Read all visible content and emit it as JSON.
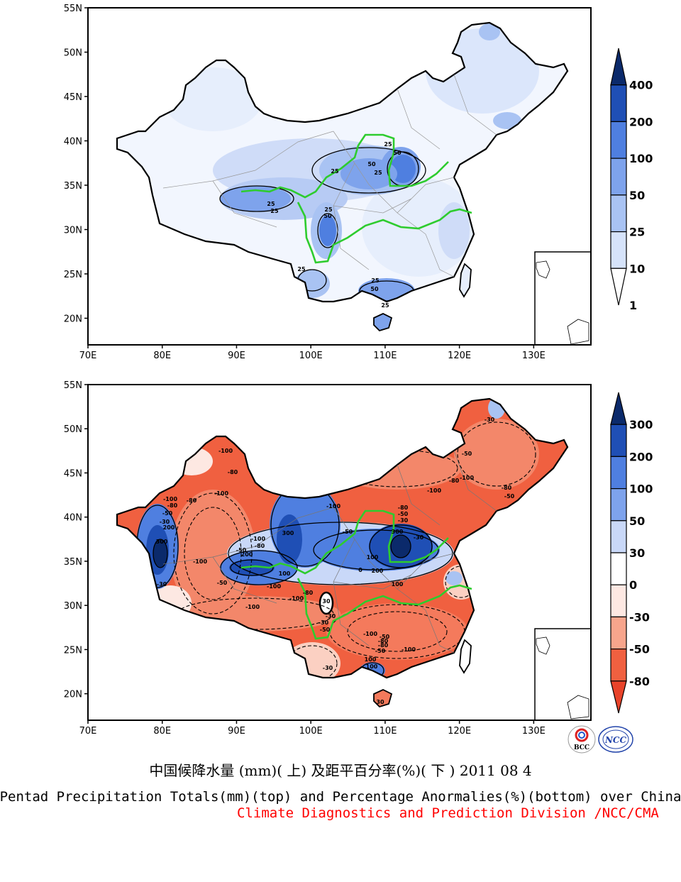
{
  "colors": {
    "river": "#2ecc2e",
    "neg_strong": "#f06040",
    "neg_mid": "#f59a82",
    "neg_light": "#fde8e2",
    "pos_light": "#e6eefc",
    "pos_mid": "#a9c3f3",
    "pos_strong": "#4f7fe0",
    "pos_dark": "#153a8a"
  },
  "top_panel": {
    "lat_labels": [
      "55N",
      "50N",
      "45N",
      "40N",
      "35N",
      "30N",
      "25N",
      "20N"
    ],
    "lon_labels": [
      "70E",
      "80E",
      "90E",
      "100E",
      "110E",
      "120E",
      "130E"
    ],
    "colorbar_labels": [
      "400",
      "200",
      "100",
      "50",
      "25",
      "10",
      "1"
    ],
    "colorbar_colors": [
      "#0b2a6b",
      "#1f4fb5",
      "#4f7fe0",
      "#7ea3ec",
      "#a9c3f3",
      "#d6e3fa",
      "#ffffff"
    ],
    "contour_labels": [
      "25",
      "50",
      "25",
      "50",
      "25",
      "25",
      "25",
      "25",
      "50",
      "25",
      "25",
      "50",
      "25"
    ]
  },
  "bottom_panel": {
    "lat_labels": [
      "55N",
      "50N",
      "45N",
      "40N",
      "35N",
      "30N",
      "25N",
      "20N"
    ],
    "lon_labels": [
      "70E",
      "80E",
      "90E",
      "100E",
      "110E",
      "120E",
      "130E"
    ],
    "colorbar_labels": [
      "300",
      "200",
      "100",
      "50",
      "30",
      "0",
      "-30",
      "-50",
      "-80"
    ],
    "colorbar_colors": [
      "#0b2a6b",
      "#1f4fb5",
      "#4f7fe0",
      "#7ea3ec",
      "#c9d8f8",
      "#ffffff",
      "#fde8e2",
      "#f7a58c",
      "#f06040",
      "#e8432a"
    ],
    "contour_labels": [
      "-100",
      "-80",
      "-100",
      "-80",
      "-100",
      "-80",
      "-50",
      "-30",
      "300",
      "200",
      "-100",
      "-30",
      "-80",
      "300",
      "200",
      "-100",
      "-50",
      "-100",
      "100",
      "-100",
      "-80",
      "-50",
      "-30",
      "0",
      "100",
      "200",
      "300",
      "-50",
      "-30",
      "100",
      "-100",
      "-80",
      "-50",
      "-100",
      "-30",
      "-100",
      "-80",
      "-50",
      "-30",
      "-100",
      "-80",
      "-50",
      "-50",
      "-30",
      "-80",
      "-100",
      "-30",
      "30",
      "100",
      "-50",
      "-100",
      "-80",
      "-50",
      "100",
      "30"
    ]
  },
  "logos": {
    "bcc": "BCC",
    "ncc": "NCC"
  },
  "captions": {
    "chinese": "中国候降水量 (mm)( 上) 及距平百分率(%)( 下 ) 2011 08 4",
    "english": "Pentad Precipitation Totals(mm)(top) and Percentage Anormalies(%)(bottom) over China",
    "division": "Climate Diagnostics and Prediction Division /NCC/CMA"
  }
}
